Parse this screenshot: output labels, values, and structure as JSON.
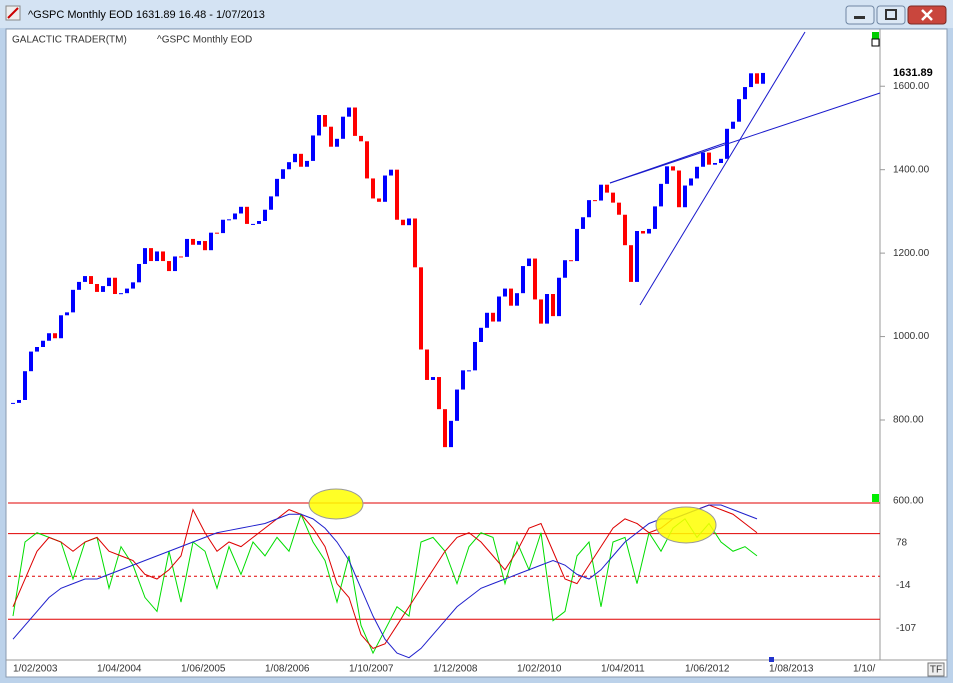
{
  "window": {
    "title": "^GSPC Monthly EOD  1631.89    16.48 - 1/07/2013",
    "tf": "TF"
  },
  "chart_data": [
    {
      "type": "candlestick",
      "title": "GALACTIC TRADER(TM)",
      "subtitle": "^GSPC Monthly EOD",
      "up_color": "#0000ff",
      "down_color": "#ff0000",
      "categories": [
        "1/02/2003",
        null,
        null,
        null,
        null,
        null,
        null,
        null,
        null,
        null,
        null,
        null,
        null,
        null,
        "1/04/2004",
        null,
        null,
        null,
        null,
        null,
        null,
        null,
        null,
        null,
        null,
        null,
        null,
        null,
        "1/06/2005",
        null,
        null,
        null,
        null,
        null,
        null,
        null,
        null,
        null,
        null,
        null,
        null,
        null,
        "1/08/2006",
        null,
        null,
        null,
        null,
        null,
        null,
        null,
        null,
        null,
        null,
        null,
        null,
        null,
        "1/10/2007",
        null,
        null,
        null,
        null,
        null,
        null,
        null,
        null,
        null,
        null,
        null,
        null,
        null,
        "1/12/2008",
        null,
        null,
        null,
        null,
        null,
        null,
        null,
        null,
        null,
        null,
        null,
        null,
        null,
        "1/02/2010",
        null,
        null,
        null,
        null,
        null,
        null,
        null,
        null,
        null,
        null,
        null,
        null,
        null,
        "1/04/2011",
        null,
        null,
        null,
        null,
        null,
        null,
        null,
        null,
        null,
        null,
        null,
        null,
        null,
        "1/06/2012",
        null,
        null,
        null,
        null,
        null,
        null,
        null,
        null,
        null,
        null,
        null,
        null,
        null,
        "1/08/2013",
        null,
        null,
        null,
        null,
        null,
        null,
        null,
        null,
        null,
        null,
        null,
        null,
        null,
        "1/10/"
      ],
      "values": [
        841,
        848,
        917,
        964,
        975,
        990,
        1008,
        996,
        1051,
        1058,
        1112,
        1131,
        1145,
        1126,
        1107,
        1121,
        1141,
        1102,
        1104,
        1115,
        1130,
        1174,
        1212,
        1181,
        1204,
        1181,
        1157,
        1192,
        1191,
        1234,
        1220,
        1229,
        1207,
        1249,
        1248,
        1280,
        1281,
        1295,
        1311,
        1270,
        1270,
        1277,
        1304,
        1336,
        1378,
        1401,
        1418,
        1438,
        1407,
        1421,
        1482,
        1531,
        1503,
        1455,
        1474,
        1527,
        1549,
        1481,
        1468,
        1379,
        1331,
        1323,
        1386,
        1400,
        1280,
        1267,
        1283,
        1166,
        969,
        896,
        903,
        826,
        735,
        798,
        873,
        919,
        919,
        987,
        1021,
        1057,
        1036,
        1096,
        1115,
        1074,
        1104,
        1169,
        1187,
        1089,
        1031,
        1102,
        1049,
        1141,
        1183,
        1181,
        1258,
        1286,
        1327,
        1326,
        1364,
        1345,
        1321,
        1292,
        1219,
        1131,
        1253,
        1247,
        1258,
        1312,
        1366,
        1408,
        1398,
        1310,
        1362,
        1379,
        1407,
        1441,
        1412,
        1416,
        1426,
        1498,
        1515,
        1569,
        1598,
        1631,
        1606,
        1631.89,
        null,
        null,
        null,
        null,
        null,
        null,
        null,
        null,
        null,
        null,
        null,
        null,
        null,
        null,
        null
      ],
      "ylim": [
        661,
        1730
      ],
      "yticks": [
        {
          "value": 800,
          "label": "800.00"
        },
        {
          "value": 1000,
          "label": "1000.00"
        },
        {
          "value": 1200,
          "label": "1200.00"
        },
        {
          "value": 1400,
          "label": "1400.00"
        },
        {
          "value": 1600,
          "label": "1600.00"
        }
      ],
      "annotations": [
        {
          "value": 1631.89,
          "label": "1631.89"
        }
      ]
    },
    {
      "type": "line",
      "ylim": [
        -195,
        194
      ],
      "yticks": [
        78,
        -14,
        -107
      ],
      "annotations": [
        "600.00"
      ],
      "series": [
        {
          "name": "fast",
          "color": "#00dd00",
          "values": [
            -100,
            60,
            80,
            70,
            60,
            -20,
            60,
            70,
            -40,
            50,
            10,
            -60,
            -90,
            40,
            -70,
            60,
            40,
            -40,
            50,
            -10,
            60,
            30,
            70,
            40,
            120,
            60,
            20,
            -70,
            30,
            -120,
            -180,
            -130,
            -80,
            -100,
            60,
            70,
            40,
            -30,
            50,
            80,
            70,
            -30,
            60,
            0,
            80,
            -110,
            -90,
            30,
            60,
            -80,
            60,
            70,
            -30,
            80,
            40,
            90,
            110,
            70,
            100,
            60,
            40,
            50,
            30
          ]
        },
        {
          "name": "medium",
          "color": "#dd0000",
          "values": [
            -80,
            -20,
            40,
            70,
            60,
            40,
            60,
            70,
            40,
            30,
            20,
            -10,
            -20,
            0,
            30,
            130,
            80,
            40,
            60,
            50,
            70,
            90,
            110,
            130,
            120,
            90,
            50,
            -30,
            -60,
            -140,
            -170,
            -160,
            -120,
            -80,
            -40,
            0,
            40,
            70,
            80,
            60,
            30,
            0,
            40,
            90,
            100,
            40,
            -20,
            -30,
            10,
            50,
            90,
            110,
            100,
            80,
            90,
            110,
            120,
            130,
            140,
            130,
            120,
            100,
            80
          ]
        },
        {
          "name": "slow",
          "color": "#2020cc",
          "values": [
            -150,
            -120,
            -90,
            -60,
            -40,
            -30,
            -20,
            -20,
            -10,
            0,
            10,
            20,
            30,
            40,
            50,
            60,
            70,
            80,
            85,
            90,
            95,
            100,
            110,
            120,
            120,
            110,
            90,
            60,
            20,
            -40,
            -100,
            -150,
            -180,
            -190,
            -170,
            -140,
            -110,
            -80,
            -60,
            -40,
            -30,
            -20,
            -10,
            0,
            10,
            20,
            10,
            -10,
            -20,
            0,
            30,
            60,
            80,
            100,
            110,
            110,
            120,
            130,
            140,
            140,
            130,
            120,
            110
          ]
        }
      ]
    }
  ]
}
